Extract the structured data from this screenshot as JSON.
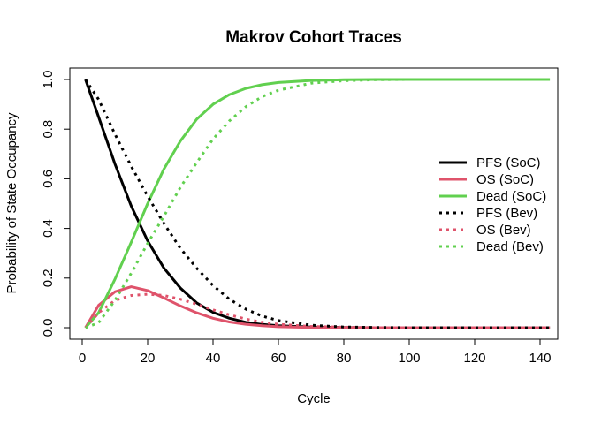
{
  "chart_data": {
    "type": "line",
    "title": "Makrov Cohort Traces",
    "xlabel": "Cycle",
    "ylabel": "Probability of State Occupancy",
    "xlim": [
      0,
      145
    ],
    "ylim": [
      0,
      1
    ],
    "xticks": [
      0,
      20,
      40,
      60,
      80,
      100,
      120,
      140
    ],
    "yticks": [
      0.0,
      0.2,
      0.4,
      0.6,
      0.8,
      1.0
    ],
    "xtick_labels": [
      "0",
      "20",
      "40",
      "60",
      "80",
      "100",
      "120",
      "140"
    ],
    "ytick_labels": [
      "0.0",
      "0.2",
      "0.4",
      "0.6",
      "0.8",
      "1.0"
    ],
    "grid": false,
    "legend_position": "right",
    "x": [
      1,
      5,
      10,
      15,
      20,
      25,
      30,
      35,
      40,
      45,
      50,
      55,
      60,
      70,
      80,
      90,
      100,
      110,
      120,
      130,
      143
    ],
    "series": [
      {
        "name": "PFS (SoC)",
        "color": "#000000",
        "style": "solid",
        "values": [
          1.0,
          0.85,
          0.66,
          0.49,
          0.35,
          0.24,
          0.16,
          0.1,
          0.062,
          0.038,
          0.022,
          0.013,
          0.008,
          0.003,
          0.001,
          0.0,
          0.0,
          0.0,
          0.0,
          0.0,
          0.0
        ]
      },
      {
        "name": "OS (SoC)",
        "color": "#df536b",
        "style": "solid",
        "values": [
          0.0,
          0.09,
          0.145,
          0.165,
          0.15,
          0.12,
          0.088,
          0.06,
          0.038,
          0.023,
          0.014,
          0.008,
          0.004,
          0.001,
          0.0,
          0.0,
          0.0,
          0.0,
          0.0,
          0.0,
          0.0
        ]
      },
      {
        "name": "Dead (SoC)",
        "color": "#61d04f",
        "style": "solid",
        "values": [
          0.0,
          0.06,
          0.195,
          0.345,
          0.5,
          0.64,
          0.752,
          0.84,
          0.9,
          0.939,
          0.964,
          0.979,
          0.988,
          0.996,
          0.999,
          1.0,
          1.0,
          1.0,
          1.0,
          1.0,
          1.0
        ]
      },
      {
        "name": "PFS (Bev)",
        "color": "#000000",
        "style": "dotted",
        "values": [
          1.0,
          0.92,
          0.78,
          0.65,
          0.53,
          0.42,
          0.32,
          0.24,
          0.17,
          0.115,
          0.075,
          0.047,
          0.029,
          0.01,
          0.003,
          0.001,
          0.0,
          0.0,
          0.0,
          0.0,
          0.0
        ]
      },
      {
        "name": "OS (Bev)",
        "color": "#df536b",
        "style": "dotted",
        "values": [
          0.0,
          0.06,
          0.11,
          0.13,
          0.135,
          0.13,
          0.115,
          0.095,
          0.072,
          0.052,
          0.035,
          0.022,
          0.014,
          0.005,
          0.002,
          0.0,
          0.0,
          0.0,
          0.0,
          0.0,
          0.0
        ]
      },
      {
        "name": "Dead (Bev)",
        "color": "#61d04f",
        "style": "dotted",
        "values": [
          0.0,
          0.02,
          0.11,
          0.22,
          0.34,
          0.45,
          0.565,
          0.665,
          0.76,
          0.833,
          0.89,
          0.931,
          0.957,
          0.985,
          0.995,
          0.999,
          1.0,
          1.0,
          1.0,
          1.0,
          1.0
        ]
      }
    ]
  }
}
